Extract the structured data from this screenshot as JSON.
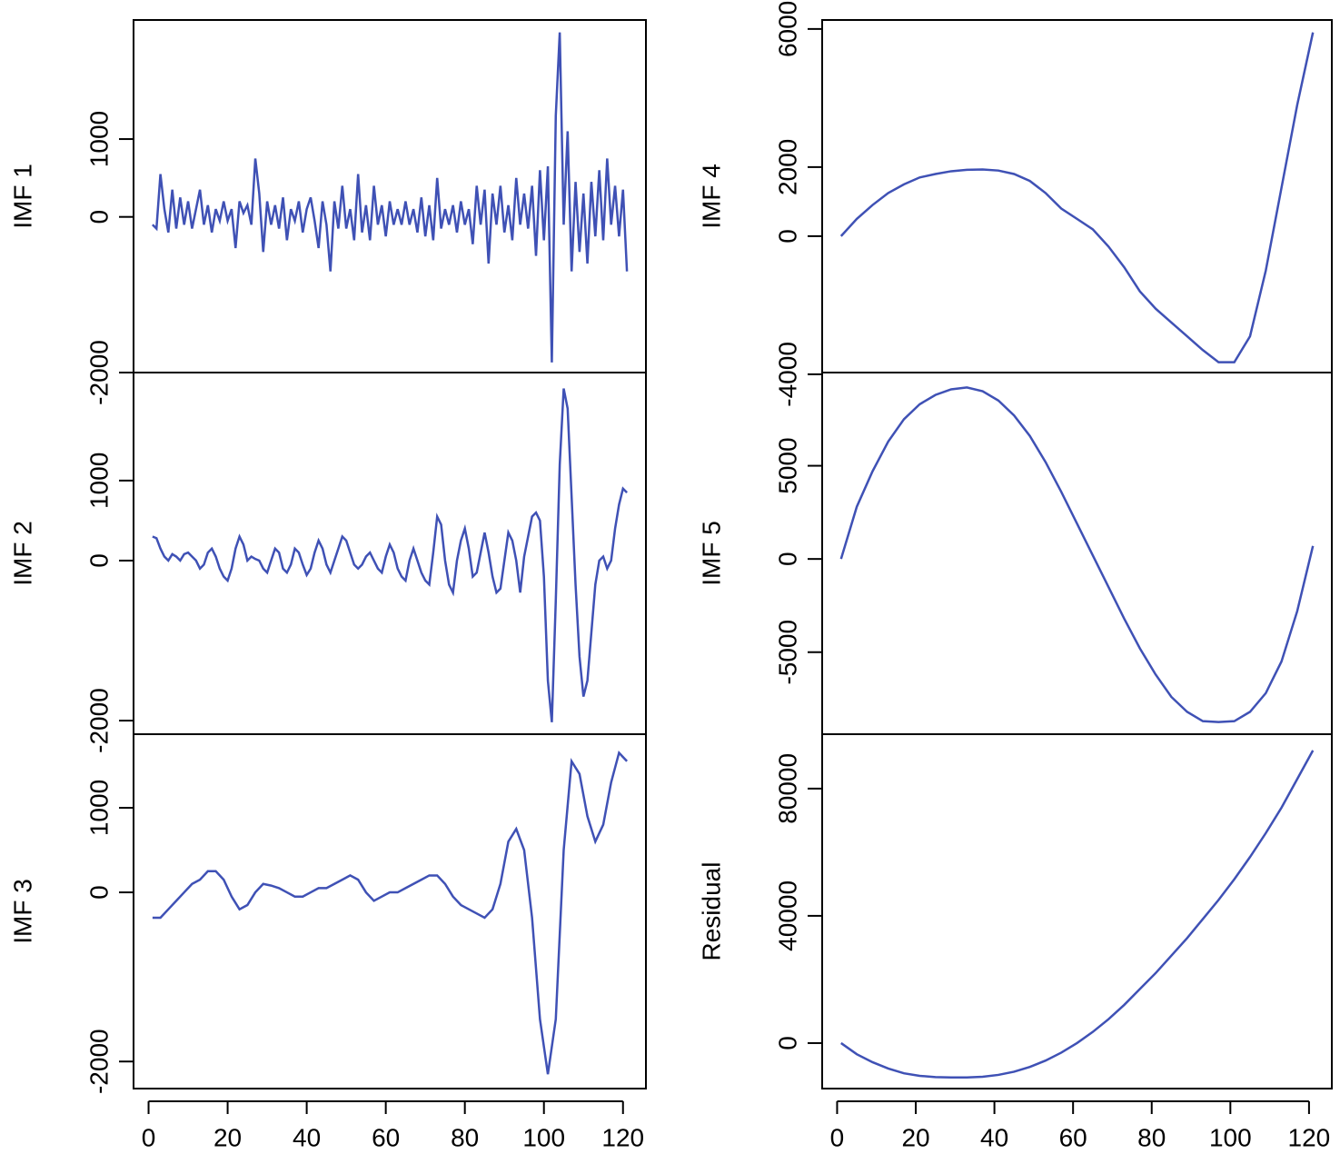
{
  "chart_data": [
    {
      "type": "line",
      "ylabel": "IMF 1",
      "color": "#3f51b5",
      "x": [
        1,
        2,
        3,
        4,
        5,
        6,
        7,
        8,
        9,
        10,
        11,
        12,
        13,
        14,
        15,
        16,
        17,
        18,
        19,
        20,
        21,
        22,
        23,
        24,
        25,
        26,
        27,
        28,
        29,
        30,
        31,
        32,
        33,
        34,
        35,
        36,
        37,
        38,
        39,
        40,
        41,
        42,
        43,
        44,
        45,
        46,
        47,
        48,
        49,
        50,
        51,
        52,
        53,
        54,
        55,
        56,
        57,
        58,
        59,
        60,
        61,
        62,
        63,
        64,
        65,
        66,
        67,
        68,
        69,
        70,
        71,
        72,
        73,
        74,
        75,
        76,
        77,
        78,
        79,
        80,
        81,
        82,
        83,
        84,
        85,
        86,
        87,
        88,
        89,
        90,
        91,
        92,
        93,
        94,
        95,
        96,
        97,
        98,
        99,
        100,
        101,
        102,
        103,
        104,
        105,
        106,
        107,
        108,
        109,
        110,
        111,
        112,
        113,
        114,
        115,
        116,
        117,
        118,
        119,
        120,
        121
      ],
      "values": [
        -100,
        -150,
        550,
        100,
        -200,
        350,
        -150,
        250,
        -100,
        200,
        -150,
        100,
        350,
        -100,
        150,
        -200,
        100,
        -50,
        200,
        -50,
        100,
        -400,
        200,
        50,
        150,
        -100,
        750,
        300,
        -450,
        200,
        -100,
        150,
        -150,
        250,
        -300,
        100,
        -50,
        200,
        -200,
        100,
        250,
        -50,
        -400,
        200,
        -100,
        -700,
        200,
        -150,
        400,
        -150,
        100,
        -300,
        550,
        -200,
        150,
        -300,
        400,
        -100,
        150,
        -250,
        200,
        -100,
        100,
        -100,
        200,
        -100,
        100,
        -200,
        250,
        -250,
        150,
        -300,
        500,
        -150,
        100,
        -100,
        150,
        -200,
        200,
        -100,
        100,
        -350,
        400,
        -100,
        350,
        -600,
        300,
        -100,
        400,
        -200,
        150,
        -300,
        500,
        -100,
        300,
        -150,
        400,
        -500,
        600,
        -300,
        650,
        -1870,
        1300,
        2370,
        -100,
        1100,
        -700,
        450,
        -450,
        300,
        -600,
        450,
        -250,
        600,
        -300,
        750,
        -100,
        400,
        -250,
        350,
        -700
      ],
      "xlim": [
        -3.8,
        125.8
      ],
      "ylim": [
        -2000,
        2530
      ],
      "yticks": [
        -2000,
        0,
        1000
      ]
    },
    {
      "type": "line",
      "ylabel": "IMF 2",
      "color": "#3f51b5",
      "x": [
        1,
        2,
        3,
        4,
        5,
        6,
        7,
        8,
        9,
        10,
        11,
        12,
        13,
        14,
        15,
        16,
        17,
        18,
        19,
        20,
        21,
        22,
        23,
        24,
        25,
        26,
        27,
        28,
        29,
        30,
        31,
        32,
        33,
        34,
        35,
        36,
        37,
        38,
        39,
        40,
        41,
        42,
        43,
        44,
        45,
        46,
        47,
        48,
        49,
        50,
        51,
        52,
        53,
        54,
        55,
        56,
        57,
        58,
        59,
        60,
        61,
        62,
        63,
        64,
        65,
        66,
        67,
        68,
        69,
        70,
        71,
        72,
        73,
        74,
        75,
        76,
        77,
        78,
        79,
        80,
        81,
        82,
        83,
        84,
        85,
        86,
        87,
        88,
        89,
        90,
        91,
        92,
        93,
        94,
        95,
        96,
        97,
        98,
        99,
        100,
        101,
        102,
        103,
        104,
        105,
        106,
        107,
        108,
        109,
        110,
        111,
        112,
        113,
        114,
        115,
        116,
        117,
        118,
        119,
        120,
        121
      ],
      "values": [
        300,
        280,
        150,
        50,
        0,
        80,
        50,
        0,
        80,
        100,
        50,
        0,
        -100,
        -50,
        100,
        150,
        50,
        -100,
        -200,
        -250,
        -100,
        150,
        300,
        200,
        0,
        50,
        20,
        0,
        -100,
        -150,
        0,
        150,
        100,
        -100,
        -150,
        -50,
        150,
        100,
        -50,
        -180,
        -100,
        100,
        250,
        150,
        -50,
        -150,
        0,
        150,
        300,
        250,
        100,
        -50,
        -100,
        -50,
        50,
        100,
        0,
        -100,
        -150,
        50,
        200,
        100,
        -100,
        -200,
        -250,
        0,
        150,
        0,
        -150,
        -250,
        -300,
        100,
        550,
        450,
        0,
        -300,
        -400,
        0,
        250,
        400,
        150,
        -200,
        -150,
        100,
        350,
        100,
        -200,
        -400,
        -350,
        0,
        350,
        250,
        0,
        -400,
        50,
        300,
        550,
        600,
        500,
        -200,
        -1500,
        -2020,
        -500,
        1200,
        2150,
        1900,
        800,
        -300,
        -1200,
        -1700,
        -1500,
        -900,
        -300,
        0,
        50,
        -100,
        0,
        400,
        700,
        900,
        850
      ],
      "xlim": [
        -3.8,
        125.8
      ],
      "ylim": [
        -2170,
        2350
      ],
      "yticks": [
        -2000,
        0,
        1000
      ]
    },
    {
      "type": "line",
      "ylabel": "IMF 3",
      "color": "#3f51b5",
      "x": [
        1,
        3,
        5,
        7,
        9,
        11,
        13,
        15,
        17,
        19,
        21,
        23,
        25,
        27,
        29,
        31,
        33,
        35,
        37,
        39,
        41,
        43,
        45,
        47,
        49,
        51,
        53,
        55,
        57,
        59,
        61,
        63,
        65,
        67,
        69,
        71,
        73,
        75,
        77,
        79,
        81,
        83,
        85,
        87,
        89,
        91,
        93,
        95,
        97,
        99,
        101,
        103,
        105,
        107,
        109,
        111,
        113,
        115,
        117,
        119,
        121
      ],
      "values": [
        -300,
        -300,
        -200,
        -100,
        0,
        100,
        150,
        250,
        250,
        150,
        -50,
        -200,
        -150,
        0,
        100,
        80,
        50,
        0,
        -50,
        -50,
        0,
        50,
        50,
        100,
        150,
        200,
        150,
        0,
        -100,
        -50,
        0,
        0,
        50,
        100,
        150,
        200,
        200,
        100,
        -50,
        -150,
        -200,
        -250,
        -300,
        -200,
        100,
        600,
        750,
        500,
        -300,
        -1500,
        -2150,
        -1500,
        500,
        1550,
        1400,
        900,
        600,
        800,
        1300,
        1650,
        1550
      ],
      "xlim": [
        -3.8,
        125.8
      ],
      "ylim": [
        -2320,
        1870
      ],
      "yticks": [
        -2000,
        0,
        1000
      ],
      "xticks": [
        0,
        20,
        40,
        60,
        80,
        100,
        120
      ]
    },
    {
      "type": "line",
      "ylabel": "IMF 4",
      "color": "#3f51b5",
      "x": [
        1,
        5,
        9,
        13,
        17,
        21,
        25,
        29,
        33,
        37,
        41,
        45,
        49,
        53,
        57,
        61,
        65,
        69,
        73,
        77,
        81,
        85,
        89,
        93,
        97,
        101,
        105,
        109,
        113,
        117,
        121
      ],
      "values": [
        0,
        500,
        900,
        1250,
        1500,
        1700,
        1800,
        1880,
        1920,
        1930,
        1900,
        1800,
        1600,
        1250,
        800,
        500,
        200,
        -300,
        -900,
        -1600,
        -2100,
        -2500,
        -2900,
        -3300,
        -3650,
        -3650,
        -2900,
        -1000,
        1400,
        3800,
        5900
      ],
      "xlim": [
        -3.8,
        125.8
      ],
      "ylim": [
        -3950,
        6260
      ],
      "yticks": [
        -4000,
        0,
        2000,
        6000
      ]
    },
    {
      "type": "line",
      "ylabel": "IMF 5",
      "color": "#3f51b5",
      "x": [
        1,
        5,
        9,
        13,
        17,
        21,
        25,
        29,
        33,
        37,
        41,
        45,
        49,
        53,
        57,
        61,
        65,
        69,
        73,
        77,
        81,
        85,
        89,
        93,
        97,
        101,
        105,
        109,
        113,
        117,
        121
      ],
      "values": [
        0,
        2800,
        4700,
        6300,
        7500,
        8300,
        8800,
        9100,
        9200,
        9000,
        8500,
        7700,
        6600,
        5200,
        3600,
        1900,
        200,
        -1500,
        -3200,
        -4800,
        -6200,
        -7400,
        -8200,
        -8700,
        -8750,
        -8700,
        -8200,
        -7200,
        -5500,
        -2800,
        700
      ],
      "xlim": [
        -3.8,
        125.8
      ],
      "ylim": [
        -9400,
        10000
      ],
      "yticks": [
        -5000,
        0,
        5000
      ]
    },
    {
      "type": "line",
      "ylabel": "Residual",
      "color": "#3f51b5",
      "x": [
        1,
        5,
        9,
        13,
        17,
        21,
        25,
        29,
        33,
        37,
        41,
        45,
        49,
        53,
        57,
        61,
        65,
        69,
        73,
        77,
        81,
        85,
        89,
        93,
        97,
        101,
        105,
        109,
        113,
        117,
        121
      ],
      "values": [
        0,
        -3500,
        -6000,
        -8000,
        -9500,
        -10300,
        -10700,
        -10800,
        -10800,
        -10600,
        -10000,
        -9000,
        -7500,
        -5500,
        -3000,
        0,
        3500,
        7500,
        12000,
        17000,
        22000,
        27500,
        33000,
        39000,
        45000,
        51500,
        58500,
        66000,
        74000,
        83000,
        92000
      ],
      "xlim": [
        -3.8,
        125.8
      ],
      "ylim": [
        -14300,
        97100
      ],
      "yticks": [
        0,
        40000,
        80000
      ],
      "xticks": [
        0,
        20,
        40,
        60,
        80,
        100,
        120
      ]
    }
  ]
}
